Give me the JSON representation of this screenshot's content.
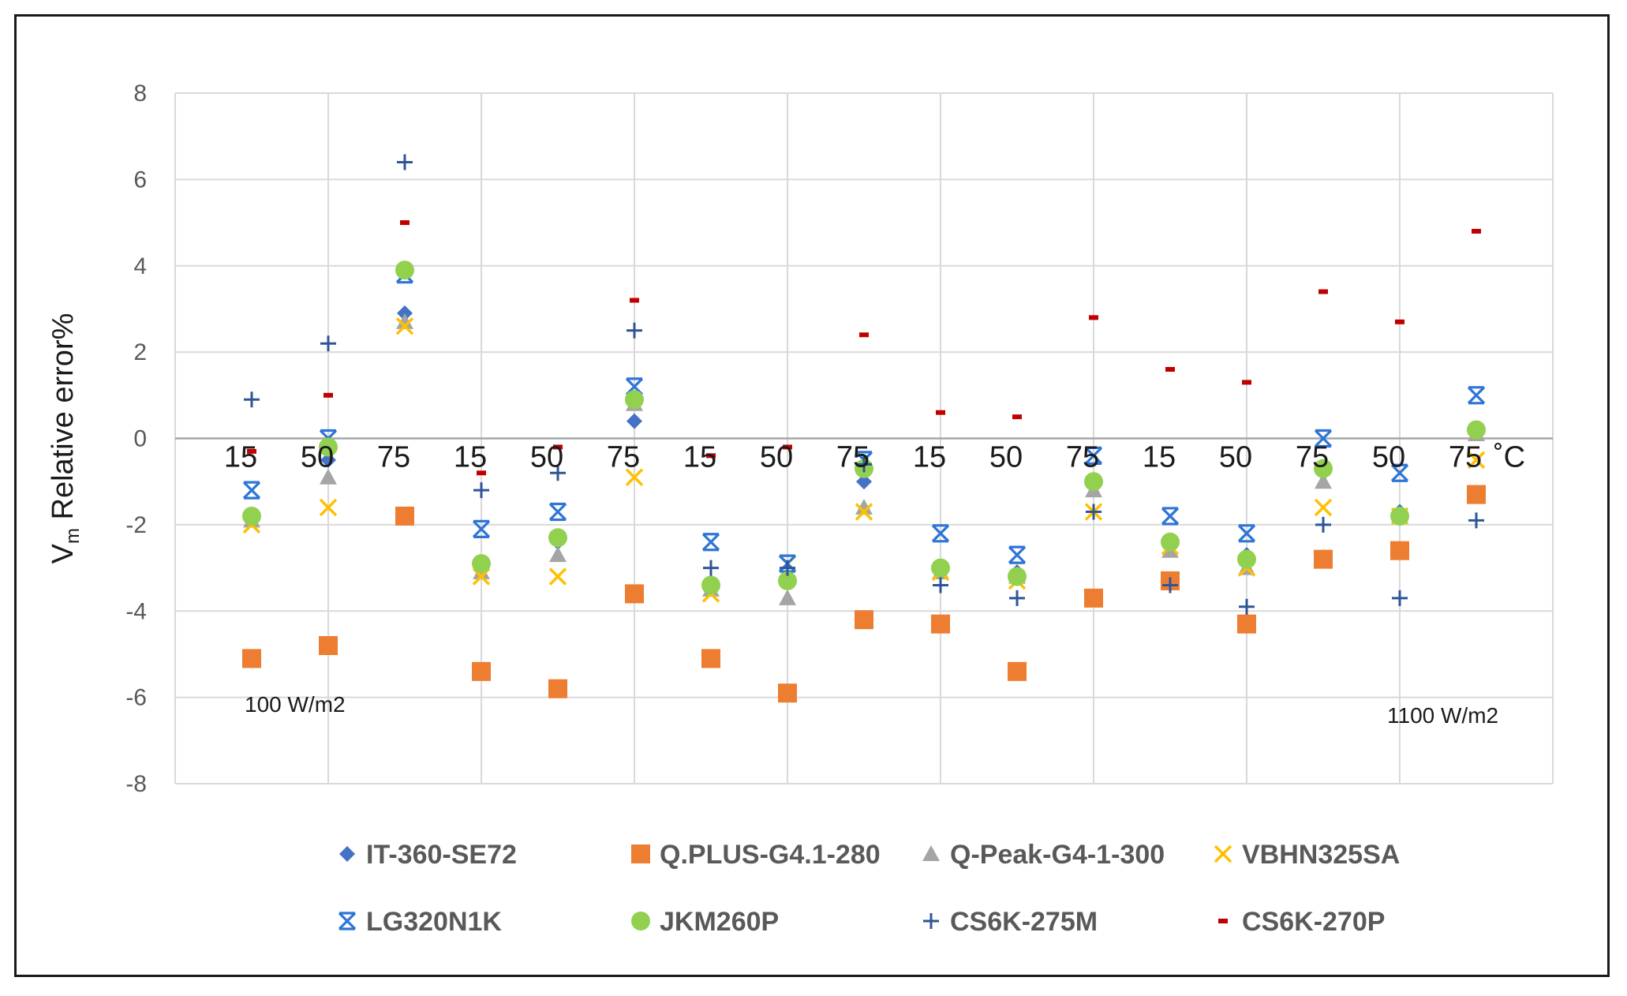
{
  "chart_data": {
    "type": "scatter",
    "ylabel": {
      "main": "V",
      "sub": "m",
      "rest": " Relative error%"
    },
    "ylim": [
      -8,
      8
    ],
    "yticks": [
      -8,
      -6,
      -4,
      -2,
      0,
      2,
      4,
      6,
      8
    ],
    "grid": true,
    "x_tick_labels": [
      "15",
      "50",
      "75",
      "15",
      "50",
      "75",
      "15",
      "50",
      "75",
      "15",
      "50",
      "75",
      "15",
      "50",
      "75",
      "50",
      "75"
    ],
    "x_unit_label": "˚C",
    "annotations": [
      "100 W/m2",
      "1100 W/m2"
    ],
    "legend_position": "bottom",
    "series": [
      {
        "name": "IT-360-SE72",
        "marker": "diamond",
        "color": "#4472c4",
        "values": [
          -1.8,
          -0.5,
          2.9,
          -2.9,
          -2.4,
          0.4,
          -3.4,
          -3.3,
          -1.0,
          -3.0,
          -3.1,
          -1.0,
          -2.4,
          -2.7,
          -0.8,
          -1.7,
          0.2
        ]
      },
      {
        "name": "Q.PLUS-G4.1-280",
        "marker": "square",
        "color": "#ed7d31",
        "values": [
          -5.1,
          -4.8,
          -1.8,
          -5.4,
          -5.8,
          -3.6,
          -5.1,
          -5.9,
          -4.2,
          -4.3,
          -5.4,
          -3.7,
          -3.3,
          -4.3,
          -2.8,
          -2.6,
          -1.3
        ]
      },
      {
        "name": "Q-Peak-G4-1-300",
        "marker": "triangle",
        "color": "#a5a5a5",
        "values": [
          -1.9,
          -0.9,
          2.7,
          -3.1,
          -2.7,
          0.8,
          -3.5,
          -3.7,
          -1.6,
          -3.1,
          -3.2,
          -1.2,
          -2.6,
          -3.0,
          -1.0,
          -1.8,
          0.1
        ]
      },
      {
        "name": "VBHN325SA",
        "marker": "x",
        "color": "#ffc000",
        "values": [
          -2.0,
          -1.6,
          2.6,
          -3.2,
          -3.2,
          -0.9,
          -3.6,
          -2.9,
          -1.7,
          -3.1,
          -3.3,
          -1.7,
          -2.5,
          -3.0,
          -1.6,
          -1.8,
          -0.5
        ]
      },
      {
        "name": "LG320N1K",
        "marker": "asterisk",
        "color": "#2e75d6",
        "values": [
          -1.2,
          0.0,
          3.8,
          -2.1,
          -1.7,
          1.2,
          -2.4,
          -2.9,
          -0.5,
          -2.2,
          -2.7,
          -0.4,
          -1.8,
          -2.2,
          0.0,
          -0.8,
          1.0
        ]
      },
      {
        "name": "JKM260P",
        "marker": "circle",
        "color": "#92d050",
        "values": [
          -1.8,
          -0.2,
          3.9,
          -2.9,
          -2.3,
          0.9,
          -3.4,
          -3.3,
          -0.7,
          -3.0,
          -3.2,
          -1.0,
          -2.4,
          -2.8,
          -0.7,
          -1.8,
          0.2
        ]
      },
      {
        "name": "CS6K-275M",
        "marker": "plus",
        "color": "#2f5597",
        "values": [
          0.9,
          2.2,
          6.4,
          -1.2,
          -0.8,
          2.5,
          -3.0,
          -3.0,
          -0.6,
          -3.4,
          -3.7,
          -1.7,
          -3.4,
          -3.9,
          -2.0,
          -3.7,
          -1.9
        ]
      },
      {
        "name": "CS6K-270P",
        "marker": "dash",
        "color": "#c00000",
        "values": [
          -0.3,
          1.0,
          5.0,
          -0.8,
          -0.2,
          3.2,
          -0.4,
          -0.2,
          2.4,
          0.6,
          0.5,
          2.8,
          1.6,
          1.3,
          3.4,
          2.7,
          4.8
        ]
      }
    ]
  }
}
